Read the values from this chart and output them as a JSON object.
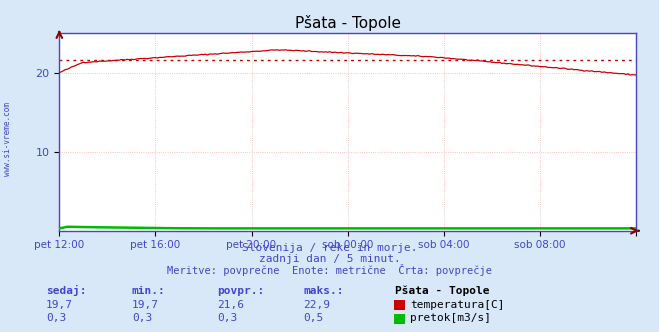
{
  "title": "Pšata - Topole",
  "bg_color": "#d8e8f8",
  "plot_bg_color": "#ffffff",
  "grid_color": "#ffaaaa",
  "x_labels": [
    "pet 12:00",
    "pet 16:00",
    "pet 20:00",
    "sob 00:00",
    "sob 04:00",
    "sob 08:00"
  ],
  "y_min": 0,
  "y_max": 25,
  "y_ticks": [
    10,
    20
  ],
  "temp_avg": 21.6,
  "temp_color": "#cc0000",
  "flow_color": "#00bb00",
  "avg_line_color": "#cc0000",
  "axis_color": "#4444cc",
  "watermark": "www.si-vreme.com",
  "subtitle1": "Slovenija / reke in morje.",
  "subtitle2": "zadnji dan / 5 minut.",
  "subtitle3": "Meritve: povprečne  Enote: metrične  Črta: povprečje",
  "label_color": "#4444cc",
  "figsize": [
    6.59,
    3.32
  ],
  "dpi": 100
}
